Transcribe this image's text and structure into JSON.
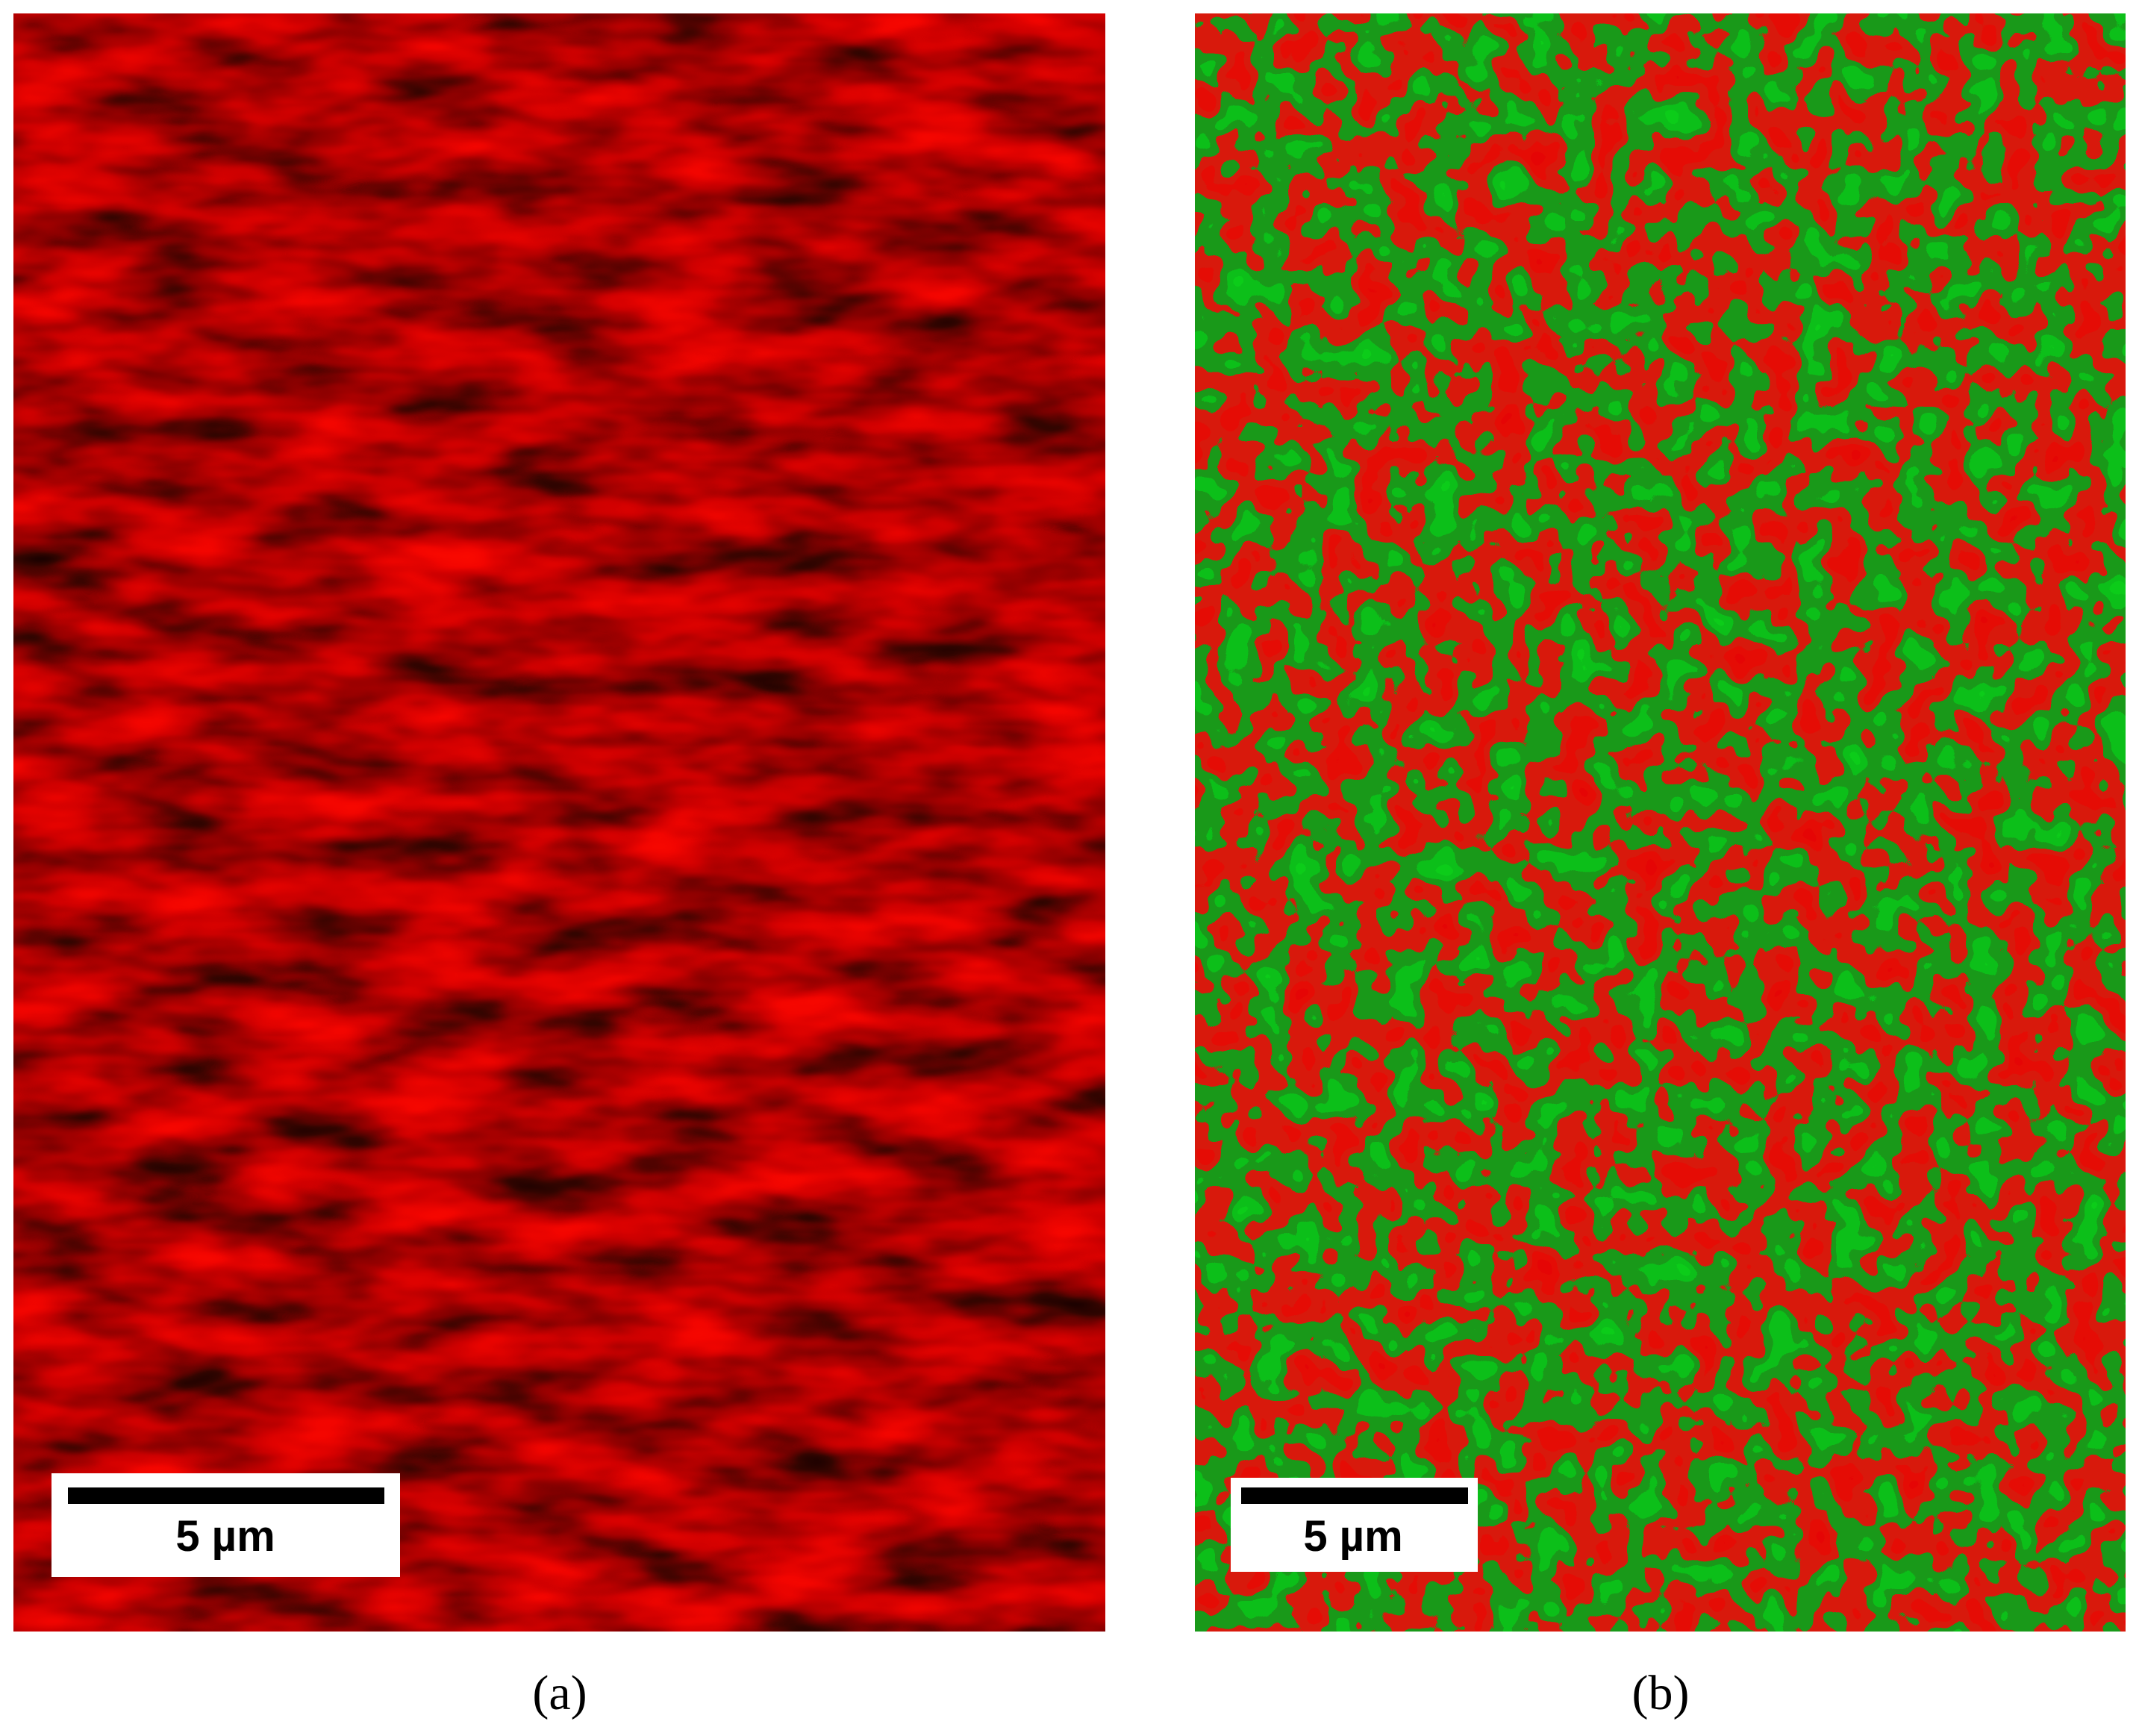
{
  "panels": [
    {
      "label": "(a)",
      "scale_bar": "5 µm"
    },
    {
      "label": "(b)",
      "scale_bar": "5 µm"
    }
  ]
}
